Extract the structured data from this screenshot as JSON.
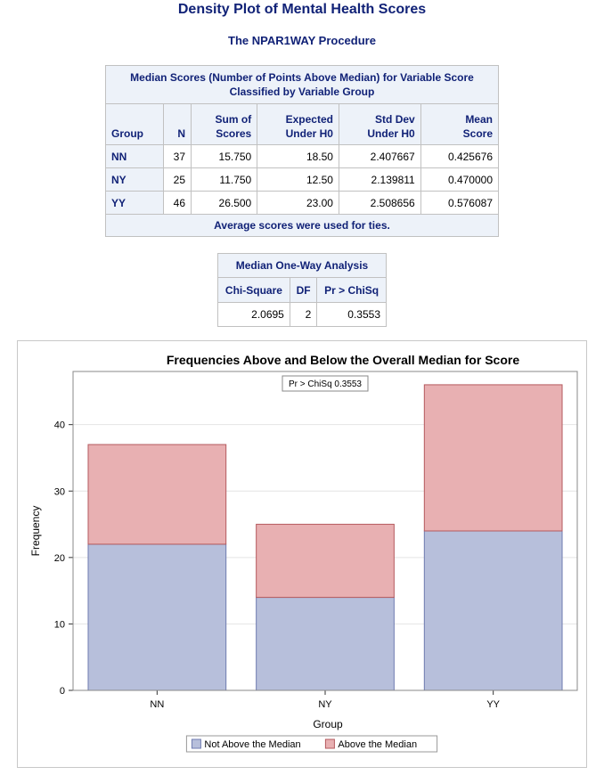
{
  "title": "Density Plot of Mental Health Scores",
  "procedure": "The NPAR1WAY Procedure",
  "median_scores_table": {
    "caption_line1": "Median Scores (Number of Points Above Median) for Variable Score",
    "caption_line2": "Classified by Variable Group",
    "headers": [
      [
        "",
        "Group"
      ],
      [
        "",
        "N"
      ],
      [
        "Sum of",
        "Scores"
      ],
      [
        "Expected",
        "Under H0"
      ],
      [
        "Std Dev",
        "Under H0"
      ],
      [
        "Mean",
        "Score"
      ]
    ],
    "rows": [
      [
        "NN",
        "37",
        "15.750",
        "18.50",
        "2.407667",
        "0.425676"
      ],
      [
        "NY",
        "25",
        "11.750",
        "12.50",
        "2.139811",
        "0.470000"
      ],
      [
        "YY",
        "46",
        "26.500",
        "23.00",
        "2.508656",
        "0.576087"
      ]
    ],
    "footnote": "Average scores were used for ties."
  },
  "oneway_table": {
    "caption": "Median One-Way Analysis",
    "headers": [
      "Chi-Square",
      "DF",
      "Pr > ChiSq"
    ],
    "row": [
      "2.0695",
      "2",
      "0.3553"
    ]
  },
  "chart_data": {
    "type": "bar",
    "stacked": true,
    "title": "Frequencies Above and Below the Overall Median for Score",
    "xlabel": "Group",
    "ylabel": "Frequency",
    "categories": [
      "NN",
      "NY",
      "YY"
    ],
    "series": [
      {
        "name": "Not Above the Median",
        "values": [
          22,
          14,
          24
        ],
        "color": "#b7bfdb",
        "stroke": "#6f7bb0"
      },
      {
        "name": "Above the Median",
        "values": [
          15,
          11,
          22
        ],
        "color": "#e8b0b2",
        "stroke": "#b55a5e"
      }
    ],
    "ylim": [
      0,
      48
    ],
    "yticks": [
      0,
      10,
      20,
      30,
      40
    ],
    "grid": true,
    "inset": "Pr > ChiSq   0.3553",
    "legend_position": "bottom"
  }
}
